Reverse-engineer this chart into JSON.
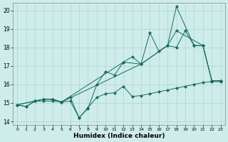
{
  "xlabel": "Humidex (Indice chaleur)",
  "background_color": "#ceecea",
  "grid_color": "#aed4d1",
  "line_color": "#1a6b60",
  "xlim": [
    -0.5,
    23.5
  ],
  "ylim": [
    13.8,
    20.4
  ],
  "yticks": [
    14,
    15,
    16,
    17,
    18,
    19,
    20
  ],
  "xticks": [
    0,
    1,
    2,
    3,
    4,
    5,
    6,
    7,
    8,
    9,
    10,
    11,
    12,
    13,
    14,
    15,
    16,
    17,
    18,
    19,
    20,
    21,
    22,
    23
  ],
  "series": {
    "line1_x": [
      0,
      1,
      2,
      3,
      4,
      5,
      6,
      7,
      8,
      9,
      10,
      11,
      12,
      13,
      14,
      15,
      16,
      17,
      18,
      19,
      20,
      21,
      22,
      23
    ],
    "line1_y": [
      14.9,
      14.8,
      15.1,
      15.1,
      15.1,
      15.05,
      15.1,
      14.2,
      14.75,
      15.3,
      15.5,
      15.55,
      15.9,
      15.35,
      15.4,
      15.5,
      15.6,
      15.7,
      15.8,
      15.9,
      16.0,
      16.1,
      16.15,
      16.15
    ],
    "line2_x": [
      0,
      1,
      2,
      3,
      4,
      5,
      6,
      7,
      8,
      9,
      10,
      11,
      12,
      13,
      14,
      15,
      16,
      17,
      18,
      19,
      20,
      21,
      22,
      23
    ],
    "line2_y": [
      14.9,
      14.8,
      15.1,
      15.2,
      15.2,
      15.05,
      15.3,
      14.2,
      14.7,
      16.0,
      16.7,
      16.5,
      17.2,
      17.5,
      17.1,
      18.8,
      17.8,
      18.1,
      18.0,
      18.9,
      18.1,
      18.1,
      16.2,
      16.2
    ],
    "line3_x": [
      0,
      2,
      3,
      4,
      5,
      12,
      14,
      17,
      18,
      20,
      21,
      22,
      23
    ],
    "line3_y": [
      14.9,
      15.1,
      15.2,
      15.2,
      15.05,
      17.2,
      17.1,
      18.1,
      20.2,
      18.1,
      18.1,
      16.2,
      16.2
    ],
    "line4_x": [
      0,
      2,
      3,
      4,
      5,
      14,
      17,
      18,
      21,
      22,
      23
    ],
    "line4_y": [
      14.9,
      15.1,
      15.2,
      15.2,
      15.05,
      17.1,
      18.1,
      18.9,
      18.1,
      16.2,
      16.2
    ]
  }
}
